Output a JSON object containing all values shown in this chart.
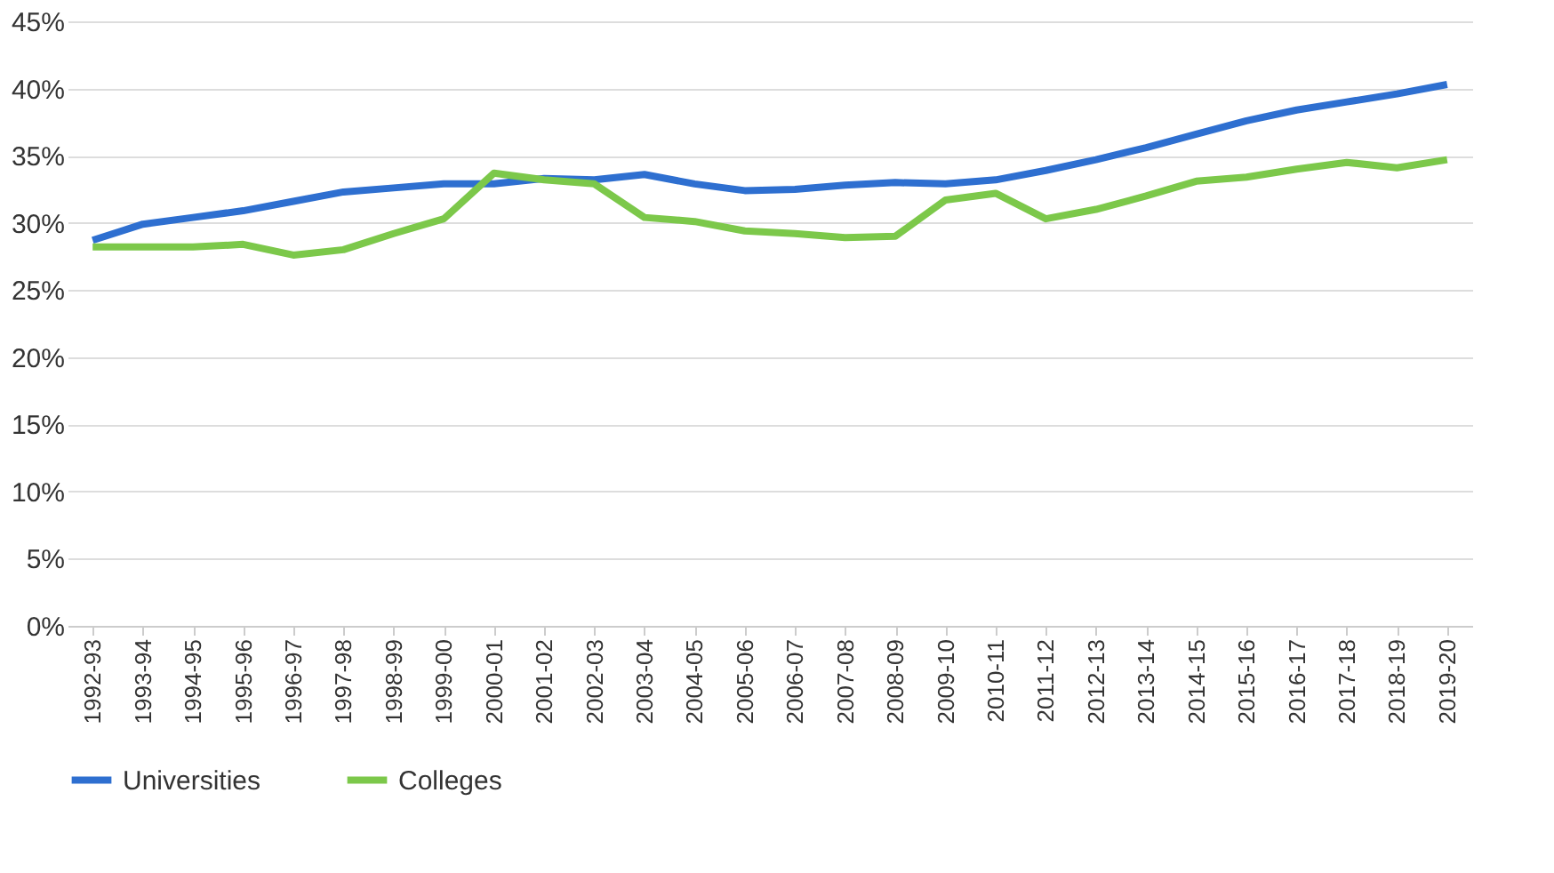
{
  "chart_data": {
    "type": "line",
    "categories": [
      "1992-93",
      "1993-94",
      "1994-95",
      "1995-96",
      "1996-97",
      "1997-98",
      "1998-99",
      "1999-00",
      "2000-01",
      "2001-02",
      "2002-03",
      "2003-04",
      "2004-05",
      "2005-06",
      "2006-07",
      "2007-08",
      "2008-09",
      "2009-10",
      "2010-11",
      "2011-12",
      "2012-13",
      "2013-14",
      "2014-15",
      "2015-16",
      "2016-17",
      "2017-18",
      "2018-19",
      "2019-20"
    ],
    "series": [
      {
        "name": "Universities",
        "color": "#2e6fd0",
        "values": [
          28.7,
          29.9,
          30.4,
          30.9,
          31.6,
          32.3,
          32.6,
          32.9,
          32.9,
          33.3,
          33.2,
          33.6,
          32.9,
          32.4,
          32.5,
          32.8,
          33.0,
          32.9,
          33.2,
          33.9,
          34.7,
          35.6,
          36.6,
          37.6,
          38.4,
          39.0,
          39.6,
          40.3
        ]
      },
      {
        "name": "Colleges",
        "color": "#7cc84a",
        "values": [
          28.2,
          28.2,
          28.2,
          28.4,
          27.6,
          28.0,
          29.2,
          30.3,
          33.7,
          33.2,
          32.9,
          30.4,
          30.1,
          29.4,
          29.2,
          28.9,
          29.0,
          31.7,
          32.2,
          30.3,
          31.0,
          32.0,
          33.1,
          33.4,
          34.0,
          34.5,
          34.1,
          34.7
        ]
      }
    ],
    "ylim": [
      0,
      45
    ],
    "yticks": [
      {
        "value": 0,
        "label": "0%"
      },
      {
        "value": 5,
        "label": "5%"
      },
      {
        "value": 10,
        "label": "10%"
      },
      {
        "value": 15,
        "label": "15%"
      },
      {
        "value": 20,
        "label": "20%"
      },
      {
        "value": 25,
        "label": "25%"
      },
      {
        "value": 30,
        "label": "30%"
      },
      {
        "value": 35,
        "label": "35%"
      },
      {
        "value": 40,
        "label": "40%"
      },
      {
        "value": 45,
        "label": "45%"
      }
    ],
    "grid": "y",
    "legend": "bottom",
    "marker": "none",
    "line_style": "solid"
  }
}
